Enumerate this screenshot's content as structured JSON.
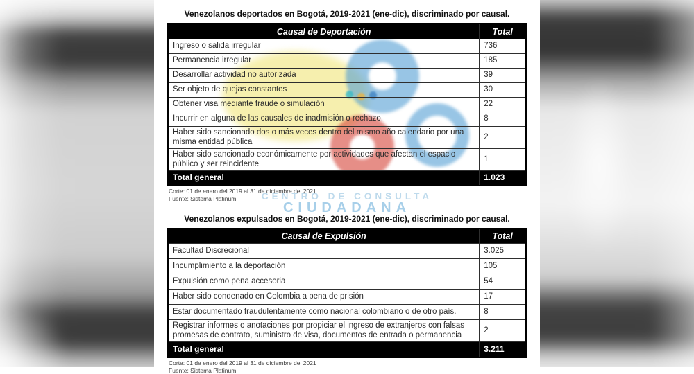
{
  "watermark": {
    "line1": "CENTRO DE CONSULTA",
    "line2": "CIUDADANA"
  },
  "colors": {
    "watermark_yellow": "#f5eda0",
    "watermark_blue": "#549ed4",
    "watermark_red": "#d6483e",
    "watermark_text_blue": "#a7cfe9",
    "header_bg": "#000000",
    "header_text": "#ffffff"
  },
  "tables": [
    {
      "title": "Venezolanos deportados en Bogotá, 2019-2021 (ene-dic), discriminado por causal.",
      "header": {
        "causal": "Causal de Deportación",
        "total": "Total"
      },
      "rows": [
        {
          "label": "Ingreso o salida irregular",
          "value": "736"
        },
        {
          "label": "Permanencia irregular",
          "value": "185"
        },
        {
          "label": "Desarrollar actividad no autorizada",
          "value": "39"
        },
        {
          "label": "Ser objeto de quejas constantes",
          "value": "30"
        },
        {
          "label": "Obtener visa mediante fraude o simulación",
          "value": "22"
        },
        {
          "label": "Incurrir en alguna de las causales de inadmisión o rechazo.",
          "value": "8"
        },
        {
          "label": "Haber sido sancionado dos o más veces dentro del mismo año calendario por una misma entidad pública",
          "value": "2"
        },
        {
          "label": "Haber sido sancionado económicamente por actividades que afectan el espacio público y ser reincidente",
          "value": "1"
        }
      ],
      "total": {
        "label": "Total general",
        "value": "1.023"
      },
      "footnotes": [
        "Corte: 01 de enero del 2019 al 31 de diciembre del 2021",
        "Fuente: Sistema Platinum"
      ]
    },
    {
      "title": "Venezolanos expulsados en Bogotá, 2019-2021 (ene-dic), discriminado por causal.",
      "header": {
        "causal": "Causal de Expulsión",
        "total": "Total"
      },
      "rows": [
        {
          "label": "Facultad Discrecional",
          "value": "3.025"
        },
        {
          "label": "Incumplimiento a la deportación",
          "value": "105"
        },
        {
          "label": "Expulsión como pena accesoria",
          "value": "54"
        },
        {
          "label": "Haber sido condenado en Colombia a pena de prisión",
          "value": "17"
        },
        {
          "label": "Estar documentado fraudulentamente como nacional colombiano o de otro país.",
          "value": "8"
        },
        {
          "label": "Registrar informes o anotaciones por propiciar el ingreso de extranjeros con falsas promesas de contrato, suministro de visa, documentos de entrada o permanencia",
          "value": "2"
        }
      ],
      "total": {
        "label": "Total general",
        "value": "3.211"
      },
      "footnotes": [
        "Corte: 01 de enero del 2019 al 31 de diciembre del 2021",
        "Fuente: Sistema Platinum"
      ]
    }
  ]
}
